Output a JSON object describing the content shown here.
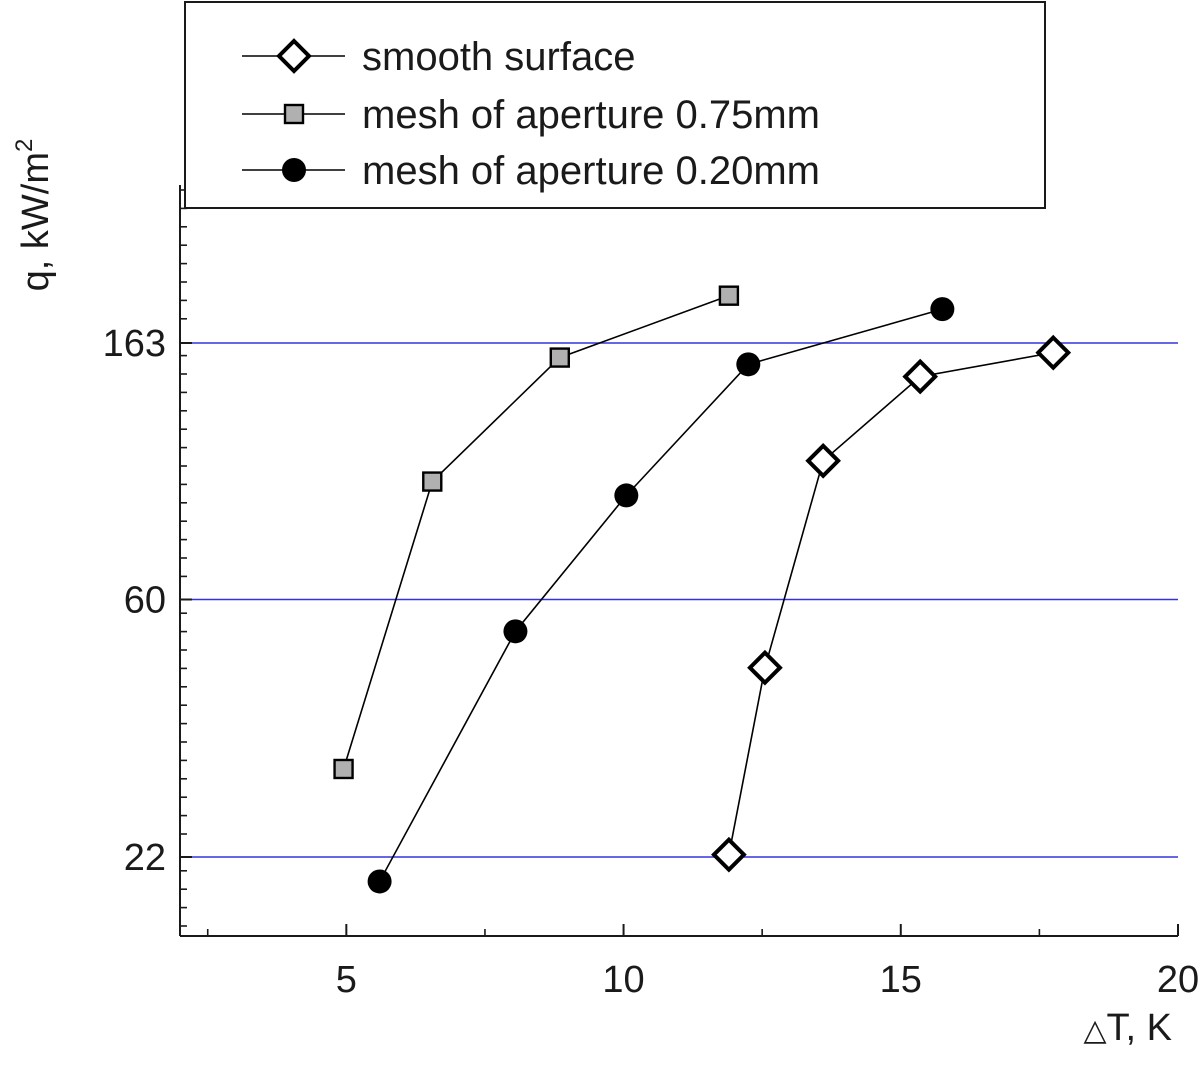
{
  "chart_data": {
    "type": "line",
    "xlabel_symbol": "△",
    "xlabel": "T, K",
    "ylabel": "q, kW/m",
    "ylabel_sup": "2",
    "xlim": [
      2,
      20
    ],
    "x_ticks": [
      5,
      10,
      15,
      20
    ],
    "y_ticks": [
      22,
      60,
      163
    ],
    "y_scale": "log",
    "gridlines_y": [
      22,
      60,
      163
    ],
    "grid_color": "#3333dd",
    "legend_position": "top",
    "series": [
      {
        "name": "smooth surface",
        "marker": "diamond-open",
        "color": "#000000",
        "points": [
          {
            "x": 11.9,
            "y": 22.2
          },
          {
            "x": 12.55,
            "y": 46
          },
          {
            "x": 13.6,
            "y": 103
          },
          {
            "x": 15.35,
            "y": 143
          },
          {
            "x": 17.75,
            "y": 157
          }
        ]
      },
      {
        "name": "mesh of aperture 0.75mm",
        "marker": "square-gray",
        "color": "#000000",
        "fill": "#b0b0b0",
        "points": [
          {
            "x": 4.95,
            "y": 31
          },
          {
            "x": 6.55,
            "y": 95
          },
          {
            "x": 8.85,
            "y": 154
          },
          {
            "x": 11.9,
            "y": 196
          }
        ]
      },
      {
        "name": "mesh of aperture 0.20mm",
        "marker": "circle-filled",
        "color": "#000000",
        "points": [
          {
            "x": 5.6,
            "y": 20
          },
          {
            "x": 8.05,
            "y": 53
          },
          {
            "x": 10.05,
            "y": 90
          },
          {
            "x": 12.25,
            "y": 150
          },
          {
            "x": 15.75,
            "y": 186
          }
        ]
      }
    ]
  }
}
